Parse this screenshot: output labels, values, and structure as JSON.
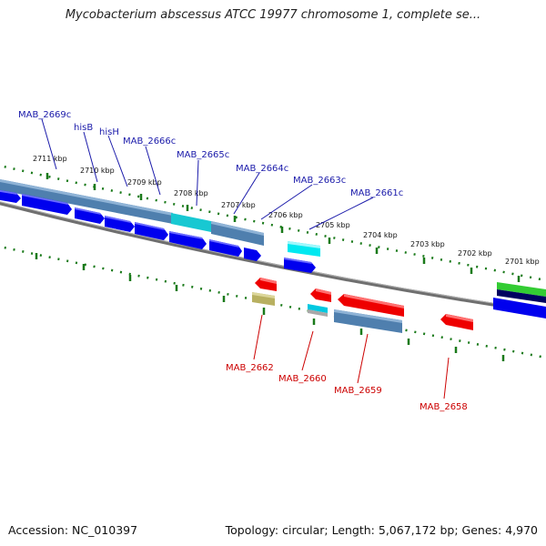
{
  "title": "Mycobacterium abscessus ATCC 19977 chromosome 1, complete se...",
  "footer": {
    "accession": "Accession: NC_010397",
    "topology": "Topology: circular; Length: 5,067,172 bp; Genes: 4,970"
  },
  "ticks": [
    "2711 kbp",
    "2710 kbp",
    "2709 kbp",
    "2708 kbp",
    "2707 kbp",
    "2706 kbp",
    "2705 kbp",
    "2704 kbp",
    "2703 kbp",
    "2702 kbp",
    "2701 kbp"
  ],
  "forward_gene_labels": [
    "MAB_2669c",
    "hisB",
    "hisH",
    "MAB_2666c",
    "MAB_2665c",
    "MAB_2664c",
    "MAB_2663c",
    "MAB_2661c"
  ],
  "reverse_gene_labels": [
    "MAB_2662",
    "MAB_2660",
    "MAB_2659",
    "MAB_2658"
  ],
  "colors": {
    "forward_label": "#1a1aaa",
    "reverse_label": "#cc0000",
    "gene_blue": "#0000ee",
    "gene_red": "#ee0000",
    "gene_cyan": "#00e0e8",
    "gene_steel": "#4f7fae",
    "gene_olive": "#b8b060",
    "gene_green": "#33cc33",
    "tick_green": "#1a7a1a",
    "backbone": "#808080"
  }
}
